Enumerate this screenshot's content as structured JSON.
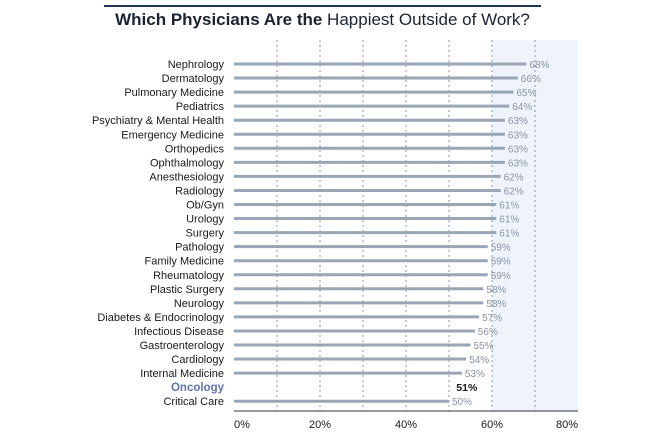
{
  "title": {
    "bold": "Which Physicians Are the",
    "regular": " Happiest Outside of Work?"
  },
  "chart_data": {
    "type": "bar",
    "orientation": "horizontal",
    "title": "Which Physicians Are the Happiest Outside of Work?",
    "categories": [
      "Nephrology",
      "Dermatology",
      "Pulmonary Medicine",
      "Pediatrics",
      "Psychiatry & Mental Health",
      "Emergency Medicine",
      "Orthopedics",
      "Ophthalmology",
      "Anesthesiology",
      "Radiology",
      "Ob/Gyn",
      "Urology",
      "Surgery",
      "Pathology",
      "Family Medicine",
      "Rheumatology",
      "Plastic Surgery",
      "Neurology",
      "Diabetes & Endocrinology",
      "Infectious Disease",
      "Gastroenterology",
      "Cardiology",
      "Internal Medicine",
      "Oncology",
      "Critical Care"
    ],
    "values": [
      68,
      66,
      65,
      64,
      63,
      63,
      63,
      63,
      62,
      62,
      61,
      61,
      61,
      59,
      59,
      59,
      58,
      58,
      57,
      56,
      55,
      54,
      53,
      51,
      50
    ],
    "value_labels": [
      "68%",
      "66%",
      "65%",
      "64%",
      "63%",
      "63%",
      "63%",
      "63%",
      "62%",
      "62%",
      "61%",
      "61%",
      "61%",
      "59%",
      "59%",
      "59%",
      "58%",
      "58%",
      "57%",
      "56%",
      "55%",
      "54%",
      "53%",
      "51%",
      "50%"
    ],
    "highlight": "Oncology",
    "xlim": [
      0,
      80
    ],
    "xticks": [
      0,
      20,
      40,
      60,
      80
    ],
    "xtick_labels": [
      "0%",
      "20%",
      "40%",
      "60%",
      "80%"
    ],
    "gridlines": [
      10,
      20,
      30,
      40,
      50,
      60,
      70
    ],
    "shaded_region": [
      60,
      80
    ],
    "colors": {
      "bar": "#9aa6b6",
      "highlight": "#24405f",
      "highlight_label": "#5f73b5",
      "shade": "#eef3fc",
      "title_rule": "#1f3553"
    }
  }
}
